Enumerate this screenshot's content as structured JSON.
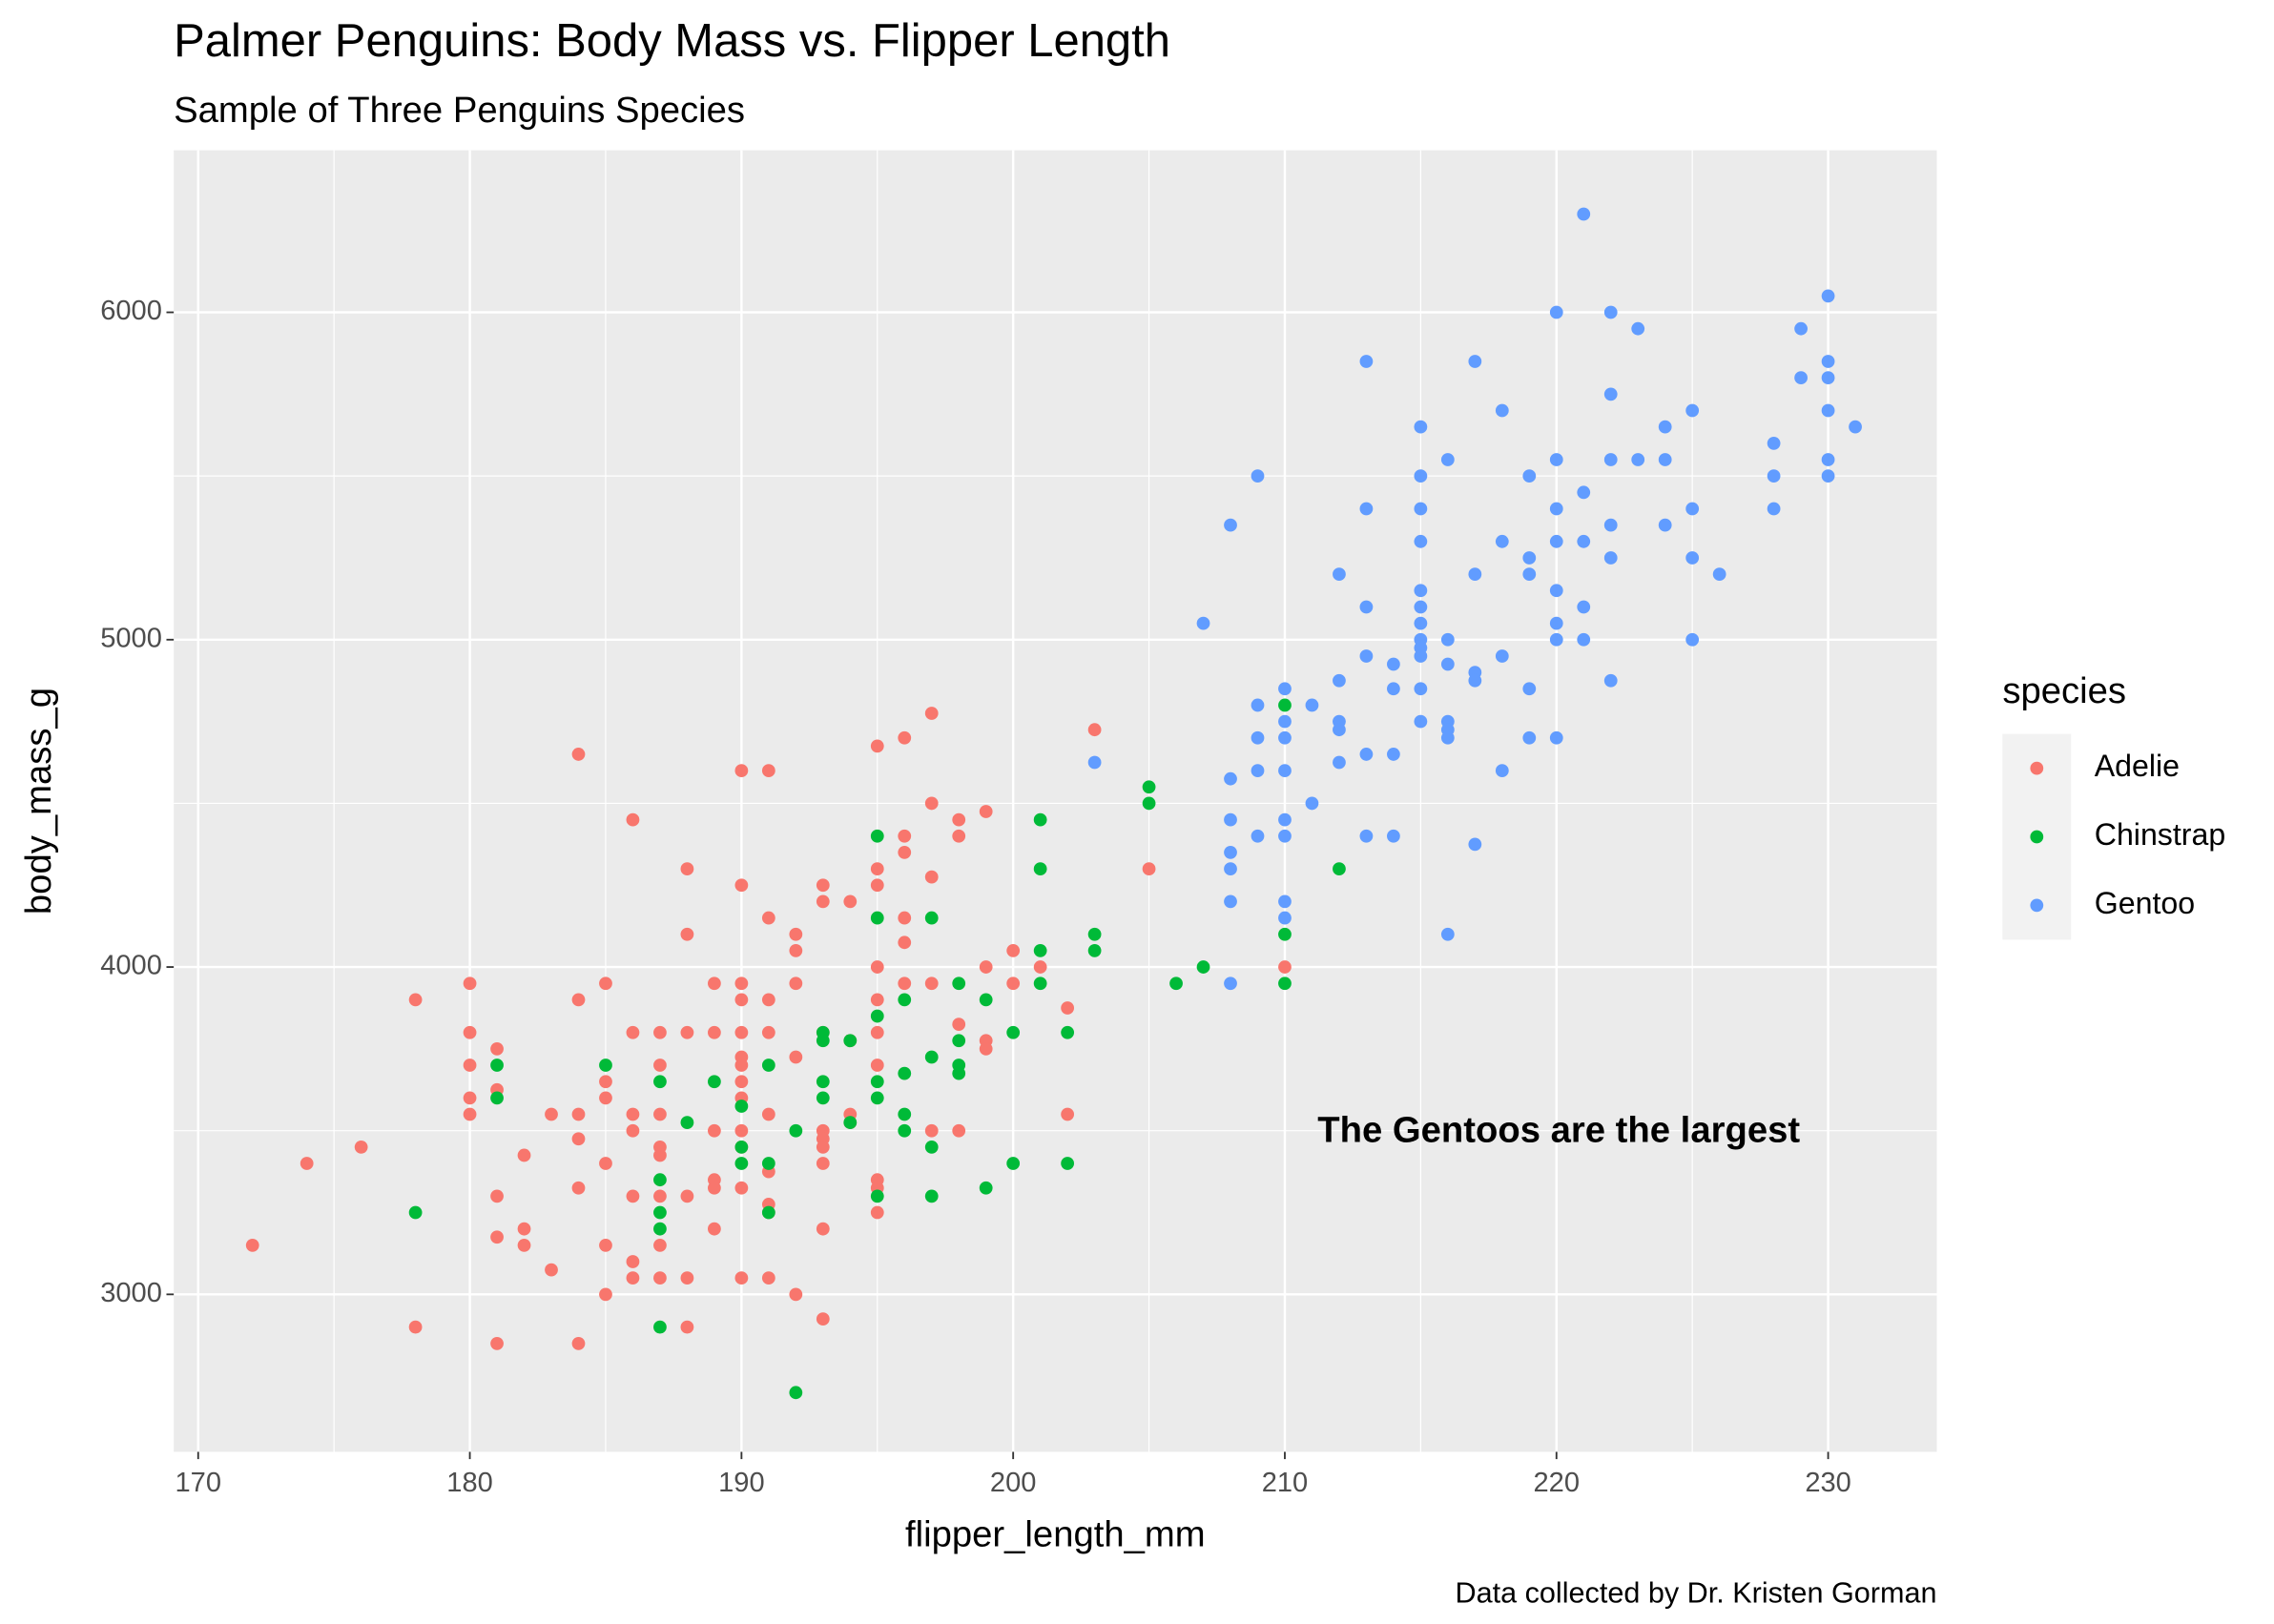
{
  "chart_data": {
    "type": "scatter",
    "title": "Palmer Penguins: Body Mass vs. Flipper Length",
    "subtitle": "Sample of Three Penguins Species",
    "x_label": "flipper_length_mm",
    "y_label": "body_mass_g",
    "caption": "Data collected by Dr. Kristen Gorman",
    "annotation": "The Gentoos are the largest",
    "legend_title": "species",
    "legend_position": "right",
    "grid": true,
    "background": "#ebebeb",
    "xlim": [
      169.1,
      234.0
    ],
    "ylim": [
      2519,
      6495
    ],
    "xticks": [
      170,
      180,
      190,
      200,
      210,
      220,
      230
    ],
    "yticks": [
      3000,
      4000,
      5000,
      6000
    ],
    "x_minor_breaks": [
      175,
      185,
      195,
      205,
      215,
      225
    ],
    "y_minor_breaks": [
      3500,
      4500,
      5500
    ],
    "series": [
      {
        "name": "Adelie",
        "color": "#F8766D",
        "x": [
          172,
          174,
          176,
          178,
          178,
          180,
          180,
          180,
          180,
          180,
          181,
          181,
          181,
          181,
          181,
          182,
          182,
          182,
          183,
          183,
          184,
          184,
          184,
          184,
          184,
          184,
          185,
          185,
          185,
          185,
          185,
          185,
          186,
          186,
          186,
          186,
          186,
          186,
          186,
          187,
          187,
          187,
          187,
          187,
          187,
          187,
          187,
          188,
          188,
          188,
          188,
          188,
          188,
          189,
          189,
          189,
          189,
          189,
          189,
          190,
          190,
          190,
          190,
          190,
          190,
          190,
          190,
          190,
          190,
          190,
          190,
          190,
          191,
          191,
          191,
          191,
          191,
          191,
          191,
          191,
          191,
          192,
          192,
          192,
          192,
          192,
          193,
          193,
          193,
          193,
          193,
          193,
          193,
          193,
          193,
          194,
          194,
          194,
          194,
          195,
          195,
          195,
          195,
          195,
          195,
          195,
          195,
          195,
          195,
          196,
          196,
          196,
          196,
          196,
          196,
          197,
          197,
          197,
          197,
          197,
          198,
          198,
          198,
          198,
          199,
          199,
          199,
          199,
          200,
          200,
          201,
          202,
          202,
          203,
          205,
          210
        ],
        "y": [
          3150,
          3400,
          3450,
          3900,
          2900,
          3950,
          3800,
          3700,
          3600,
          3550,
          3750,
          3625,
          3300,
          3175,
          2850,
          3425,
          3200,
          3150,
          3550,
          3075,
          4650,
          3900,
          3475,
          3325,
          2850,
          3550,
          3950,
          3650,
          3600,
          3400,
          3150,
          3000,
          4450,
          3800,
          3550,
          3500,
          3300,
          3100,
          3050,
          3800,
          3700,
          3550,
          3450,
          3425,
          3300,
          3150,
          3050,
          4300,
          4100,
          3800,
          3300,
          3050,
          2900,
          3950,
          3800,
          3500,
          3350,
          3325,
          3200,
          4600,
          4250,
          3950,
          3900,
          3800,
          3725,
          3700,
          3650,
          3600,
          3500,
          3450,
          3325,
          3050,
          4600,
          4150,
          3900,
          3800,
          3550,
          3375,
          3275,
          3250,
          3050,
          4100,
          4050,
          3950,
          3725,
          3000,
          4250,
          4200,
          3800,
          3500,
          3475,
          3450,
          3400,
          3200,
          2925,
          4200,
          3775,
          3550,
          3525,
          4675,
          4300,
          4250,
          4000,
          3900,
          3800,
          3700,
          3350,
          3325,
          3250,
          4700,
          4400,
          4350,
          4150,
          4075,
          3950,
          4775,
          4500,
          4275,
          3950,
          3500,
          4450,
          4400,
          3825,
          3500,
          4475,
          4000,
          3775,
          3750,
          4050,
          3950,
          4000,
          3875,
          3550,
          4725,
          4300,
          4000
        ]
      },
      {
        "name": "Chinstrap",
        "color": "#00BA38",
        "x": [
          178,
          181,
          181,
          185,
          187,
          187,
          187,
          187,
          187,
          188,
          189,
          190,
          190,
          190,
          191,
          191,
          191,
          192,
          192,
          193,
          193,
          193,
          193,
          194,
          194,
          195,
          195,
          195,
          195,
          195,
          195,
          196,
          196,
          196,
          196,
          197,
          197,
          197,
          197,
          198,
          198,
          198,
          198,
          199,
          199,
          200,
          200,
          201,
          201,
          201,
          201,
          202,
          202,
          203,
          203,
          205,
          205,
          206,
          207,
          210,
          210,
          210,
          212
        ],
        "y": [
          3250,
          3700,
          3600,
          3700,
          3650,
          3350,
          3250,
          3200,
          2900,
          3525,
          3650,
          3575,
          3450,
          3400,
          3700,
          3400,
          3250,
          3500,
          2700,
          3800,
          3775,
          3650,
          3600,
          3775,
          3525,
          4400,
          4150,
          3850,
          3650,
          3600,
          3300,
          3900,
          3675,
          3550,
          3500,
          4150,
          3725,
          3450,
          3300,
          3950,
          3775,
          3700,
          3675,
          3900,
          3325,
          3800,
          3400,
          4450,
          4300,
          4050,
          3950,
          3800,
          3400,
          4100,
          4050,
          4550,
          4500,
          3950,
          4000,
          4800,
          4100,
          3950,
          4300
        ]
      },
      {
        "name": "Gentoo",
        "color": "#619CFF",
        "x": [
          203,
          207,
          208,
          208,
          208,
          208,
          208,
          208,
          208,
          209,
          209,
          209,
          209,
          209,
          210,
          210,
          210,
          210,
          210,
          210,
          210,
          210,
          211,
          211,
          212,
          212,
          212,
          212,
          212,
          213,
          213,
          213,
          213,
          213,
          213,
          214,
          214,
          214,
          214,
          215,
          215,
          215,
          215,
          215,
          215,
          215,
          215,
          215,
          215,
          215,
          215,
          216,
          216,
          216,
          216,
          216,
          216,
          216,
          217,
          217,
          217,
          217,
          217,
          218,
          218,
          218,
          218,
          219,
          219,
          219,
          219,
          219,
          220,
          220,
          220,
          220,
          220,
          220,
          220,
          220,
          221,
          221,
          221,
          221,
          221,
          222,
          222,
          222,
          222,
          222,
          222,
          223,
          223,
          224,
          224,
          224,
          225,
          225,
          225,
          225,
          226,
          228,
          228,
          228,
          229,
          229,
          230,
          230,
          230,
          230,
          230,
          230,
          231
        ],
        "y": [
          4625,
          5050,
          5350,
          4575,
          4450,
          4350,
          4300,
          4200,
          3950,
          5500,
          4800,
          4700,
          4600,
          4400,
          4850,
          4750,
          4700,
          4600,
          4450,
          4400,
          4200,
          4150,
          4800,
          4500,
          5200,
          4875,
          4750,
          4725,
          4625,
          5850,
          5400,
          5100,
          4950,
          4650,
          4400,
          4925,
          4850,
          4650,
          4400,
          5650,
          5500,
          5400,
          5300,
          5150,
          5100,
          5050,
          5000,
          4975,
          4950,
          4850,
          4750,
          5550,
          5000,
          4925,
          4750,
          4725,
          4700,
          4100,
          5850,
          5200,
          4900,
          4875,
          4375,
          5700,
          5300,
          4950,
          4600,
          5500,
          5250,
          5200,
          4850,
          4700,
          6000,
          5550,
          5400,
          5300,
          5150,
          5050,
          5000,
          4700,
          6300,
          5450,
          5300,
          5100,
          5000,
          6000,
          5750,
          5550,
          5350,
          5250,
          4875,
          5950,
          5550,
          5650,
          5550,
          5350,
          5700,
          5400,
          5250,
          5000,
          5200,
          5600,
          5500,
          5400,
          5950,
          5800,
          6050,
          5850,
          5800,
          5700,
          5550,
          5500,
          5650
        ]
      }
    ]
  }
}
